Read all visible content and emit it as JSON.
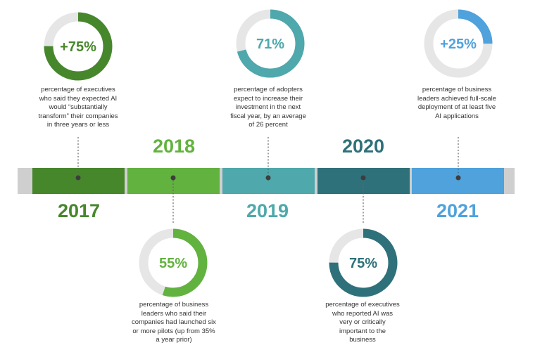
{
  "colors": {
    "c2017": "#47872c",
    "c2018": "#62b23f",
    "c2019": "#4ea8ac",
    "c2020": "#2f717a",
    "c2021": "#4fa2dc",
    "track": "#cfcfcf",
    "ring_bg": "#e6e6e6",
    "connector": "#666666"
  },
  "timeline": [
    {
      "year": "2017",
      "color_key": "c2017",
      "stat_label": "+75%",
      "stat_fraction": 0.75,
      "description": [
        "percentage of executives",
        "who said they expected AI",
        "would “substantially",
        "transform” their companies",
        "in three years or less"
      ]
    },
    {
      "year": "2018",
      "color_key": "c2018",
      "stat_label": "55%",
      "stat_fraction": 0.55,
      "description": [
        "percentage of business",
        "leaders who said their",
        "companies had launched six",
        "or more pilots (up from 35%",
        "a year prior)"
      ]
    },
    {
      "year": "2019",
      "color_key": "c2019",
      "stat_label": "71%",
      "stat_fraction": 0.71,
      "description": [
        "percentage of adopters",
        "expect to increase their",
        "investment in the next",
        "fiscal year, by an average",
        "of 26 percent"
      ]
    },
    {
      "year": "2020",
      "color_key": "c2020",
      "stat_label": "75%",
      "stat_fraction": 0.75,
      "description": [
        "percentage of executives",
        "who reported AI was",
        "very or critically",
        "important to the",
        "business"
      ]
    },
    {
      "year": "2021",
      "color_key": "c2021",
      "stat_label": "+25%",
      "stat_fraction": 0.25,
      "description": [
        "percentage of business",
        "leaders achieved full-scale",
        "deployment of at least five",
        "AI applications"
      ]
    }
  ]
}
